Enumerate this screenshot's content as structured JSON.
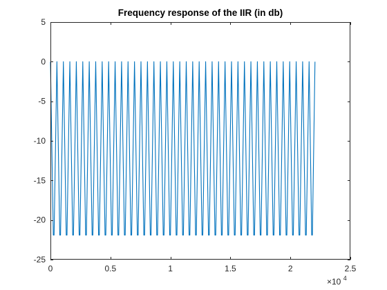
{
  "chart_data": {
    "type": "line",
    "title": "Frequency response of the IIR (in db)",
    "xlabel": "",
    "ylabel": "",
    "xlim": [
      0,
      25000
    ],
    "ylim": [
      -25,
      5
    ],
    "x_exponent_label": "×10",
    "x_exponent_power": "4",
    "x_tick_values": [
      0,
      5000,
      10000,
      15000,
      20000,
      25000
    ],
    "x_tick_labels": [
      "0",
      "0.5",
      "1",
      "1.5",
      "2",
      "2.5"
    ],
    "y_tick_values": [
      5,
      0,
      -5,
      -10,
      -15,
      -20,
      -25
    ],
    "y_tick_labels": [
      "5",
      "0",
      "-5",
      "-10",
      "-15",
      "-20",
      "-25"
    ],
    "grid": false,
    "series": [
      {
        "color": "#0072BD",
        "peak_db": 0,
        "notch_db": -21.9,
        "peak_frequencies_hz": [
          0,
          539,
          1078,
          1617,
          2156,
          2695,
          3234,
          3773,
          4312,
          4851,
          5390,
          5929,
          6468,
          7007,
          7546,
          8085,
          8624,
          9163,
          9702,
          10241,
          10780,
          11319,
          11858,
          12397,
          12936,
          13475,
          14014,
          14553,
          15092,
          15631,
          16170,
          16709,
          17248,
          17787,
          18326,
          18865,
          19404,
          19943,
          20482,
          21021,
          21560,
          22050
        ],
        "x_end_hz": 22050
      }
    ]
  }
}
